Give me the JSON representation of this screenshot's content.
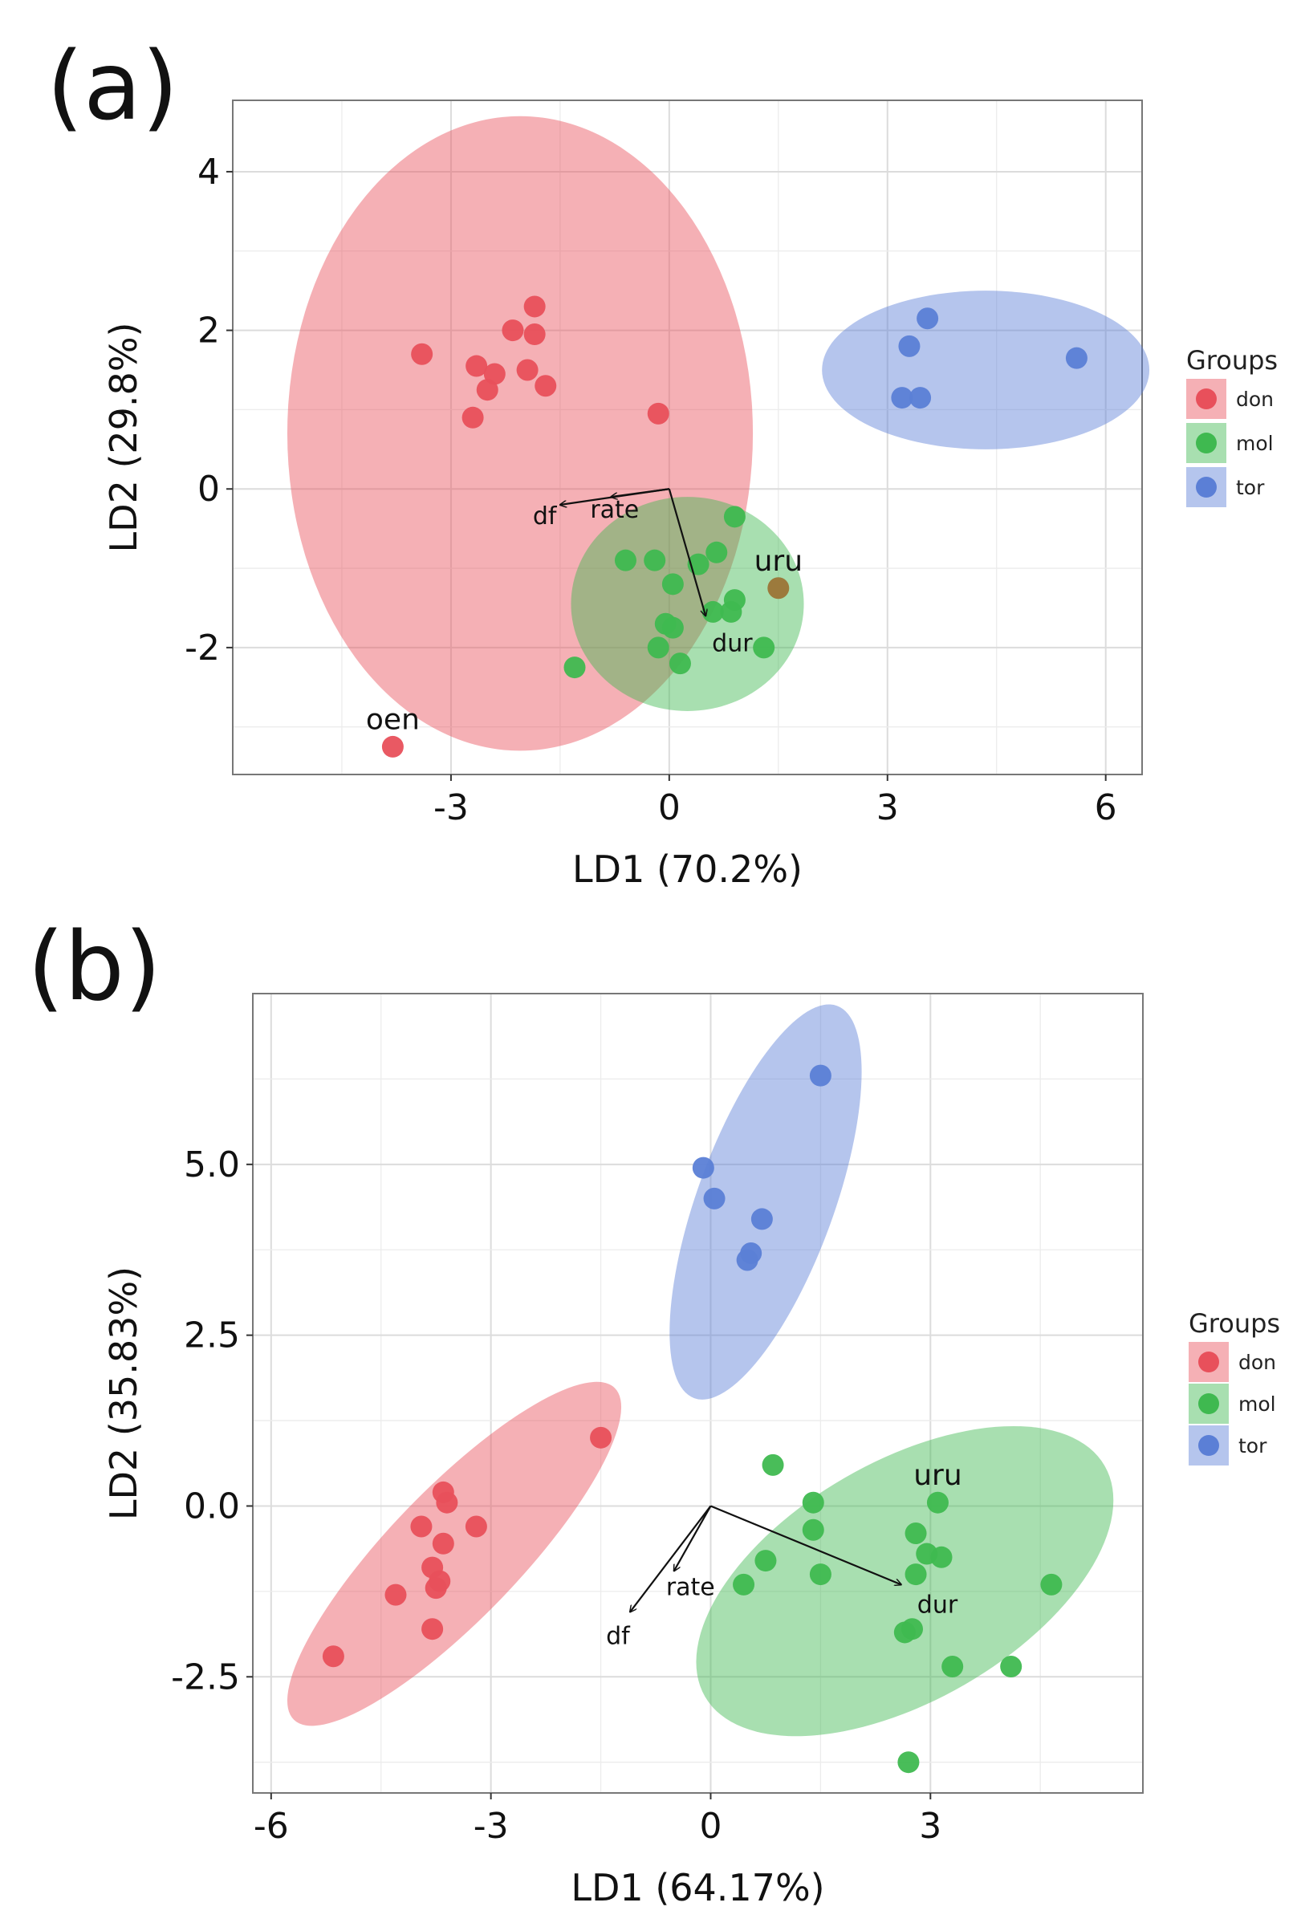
{
  "chart_data": [
    {
      "panel_label": "(a)",
      "type": "scatter",
      "xlabel": "LD1 (70.2%)",
      "ylabel": "LD2 (29.8%)",
      "xlim": [
        -6,
        6.5
      ],
      "ylim": [
        -3.6,
        4.9
      ],
      "xticks": [
        -3,
        0,
        3,
        6
      ],
      "xtick_labels": [
        "-3",
        "0",
        "3",
        "6"
      ],
      "yticks": [
        -2,
        0,
        2,
        4
      ],
      "ytick_labels": [
        "-2",
        "0",
        "2",
        "4"
      ],
      "grid": true,
      "legend": {
        "title": "Groups",
        "placement": "right",
        "entries": [
          "don",
          "mol",
          "tor"
        ]
      },
      "series": [
        {
          "name": "don",
          "color": "#e8505b",
          "points": [
            [
              -3.4,
              1.7
            ],
            [
              -2.65,
              1.55
            ],
            [
              -2.4,
              1.45
            ],
            [
              -2.5,
              1.25
            ],
            [
              -2.7,
              0.9
            ],
            [
              -2.15,
              2.0
            ],
            [
              -1.85,
              2.3
            ],
            [
              -1.85,
              1.95
            ],
            [
              -1.95,
              1.5
            ],
            [
              -1.7,
              1.3
            ],
            [
              -0.15,
              0.95
            ],
            [
              -3.8,
              -3.25
            ]
          ],
          "ellipse": {
            "cx": -2.05,
            "cy": 0.7,
            "rx": 3.2,
            "ry": 4.0,
            "angle": 0
          }
        },
        {
          "name": "mol",
          "color": "#3fb950",
          "points": [
            [
              -1.3,
              -2.25
            ],
            [
              -0.6,
              -0.9
            ],
            [
              -0.2,
              -0.9
            ],
            [
              0.05,
              -1.2
            ],
            [
              0.4,
              -0.95
            ],
            [
              0.65,
              -0.8
            ],
            [
              0.9,
              -0.35
            ],
            [
              -0.05,
              -1.7
            ],
            [
              0.05,
              -1.75
            ],
            [
              0.6,
              -1.55
            ],
            [
              0.85,
              -1.55
            ],
            [
              0.9,
              -1.4
            ],
            [
              -0.15,
              -2.0
            ],
            [
              0.15,
              -2.2
            ],
            [
              1.3,
              -2.0
            ]
          ],
          "ellipse": {
            "cx": 0.25,
            "cy": -1.45,
            "rx": 1.6,
            "ry": 1.35,
            "angle": 0
          }
        },
        {
          "name": "tor",
          "color": "#5b7fd6",
          "points": [
            [
              3.3,
              1.8
            ],
            [
              3.55,
              2.15
            ],
            [
              3.2,
              1.15
            ],
            [
              3.45,
              1.15
            ],
            [
              5.6,
              1.65
            ]
          ],
          "ellipse": {
            "cx": 4.35,
            "cy": 1.5,
            "rx": 2.25,
            "ry": 1.0,
            "angle": 0
          }
        }
      ],
      "annotations": [
        {
          "text": "uru",
          "x": 1.5,
          "y": -1.25,
          "color": "#9c7a3c"
        },
        {
          "text": "oen",
          "x": -3.8,
          "y": -3.25
        }
      ],
      "loadings": [
        {
          "name": "df",
          "x": -1.5,
          "y": -0.2
        },
        {
          "name": "rate",
          "x": -0.8,
          "y": -0.1
        },
        {
          "name": "dur",
          "x": 0.5,
          "y": -1.6
        }
      ]
    },
    {
      "panel_label": "(b)",
      "type": "scatter",
      "xlabel": "LD1 (64.17%)",
      "ylabel": "LD2 (35.83%)",
      "xlim": [
        -6.25,
        5.9
      ],
      "ylim": [
        -4.2,
        7.5
      ],
      "xticks": [
        -6,
        -3,
        0,
        3
      ],
      "xtick_labels": [
        "-6",
        "-3",
        "0",
        "3"
      ],
      "yticks": [
        -2.5,
        0,
        2.5,
        5
      ],
      "ytick_labels": [
        "-2.5",
        "0.0",
        "2.5",
        "5.0"
      ],
      "grid": true,
      "legend": {
        "title": "Groups",
        "placement": "right",
        "entries": [
          "don",
          "mol",
          "tor"
        ]
      },
      "series": [
        {
          "name": "don",
          "color": "#e8505b",
          "points": [
            [
              -5.15,
              -2.2
            ],
            [
              -4.3,
              -1.3
            ],
            [
              -3.8,
              -1.8
            ],
            [
              -3.8,
              -0.9
            ],
            [
              -3.75,
              -1.2
            ],
            [
              -3.7,
              -1.1
            ],
            [
              -3.65,
              -0.55
            ],
            [
              -3.95,
              -0.3
            ],
            [
              -3.65,
              0.2
            ],
            [
              -3.6,
              0.05
            ],
            [
              -3.2,
              -0.3
            ],
            [
              -1.5,
              1.0
            ]
          ],
          "ellipse": {
            "cx": -3.5,
            "cy": -0.7,
            "rx": 3.15,
            "ry": 0.95,
            "angle": -46
          }
        },
        {
          "name": "mol",
          "color": "#3fb950",
          "points": [
            [
              0.85,
              0.6
            ],
            [
              1.4,
              0.05
            ],
            [
              1.4,
              -0.35
            ],
            [
              0.75,
              -0.8
            ],
            [
              0.45,
              -1.15
            ],
            [
              1.5,
              -1.0
            ],
            [
              3.1,
              0.05
            ],
            [
              2.8,
              -0.4
            ],
            [
              2.95,
              -0.7
            ],
            [
              3.15,
              -0.75
            ],
            [
              2.8,
              -1.0
            ],
            [
              2.65,
              -1.85
            ],
            [
              2.75,
              -1.8
            ],
            [
              3.3,
              -2.35
            ],
            [
              4.1,
              -2.35
            ],
            [
              4.65,
              -1.15
            ],
            [
              2.7,
              -3.75
            ]
          ],
          "ellipse": {
            "cx": 2.65,
            "cy": -1.1,
            "rx": 3.15,
            "ry": 1.75,
            "angle": -30
          }
        },
        {
          "name": "tor",
          "color": "#5b7fd6",
          "points": [
            [
              1.5,
              6.3
            ],
            [
              -0.1,
              4.95
            ],
            [
              0.05,
              4.5
            ],
            [
              0.7,
              4.2
            ],
            [
              0.55,
              3.7
            ],
            [
              0.5,
              3.6
            ]
          ],
          "ellipse": {
            "cx": 0.75,
            "cy": 4.45,
            "rx": 2.85,
            "ry": 1.0,
            "angle": -70
          }
        }
      ],
      "annotations": [
        {
          "text": "uru",
          "x": 3.1,
          "y": 0.05
        }
      ],
      "loadings": [
        {
          "name": "df",
          "x": -1.1,
          "y": -1.55
        },
        {
          "name": "rate",
          "x": -0.5,
          "y": -0.95
        },
        {
          "name": "dur",
          "x": 2.6,
          "y": -1.15
        }
      ]
    }
  ]
}
